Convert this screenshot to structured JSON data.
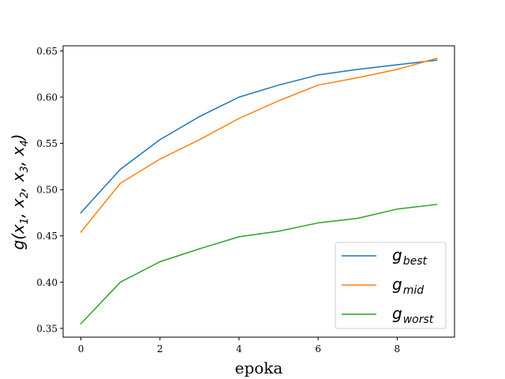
{
  "chart_data": {
    "type": "line",
    "xlabel": "epoka",
    "ylabel": "g(x1, x2, x3, x4)",
    "x": [
      0,
      1,
      2,
      3,
      4,
      5,
      6,
      7,
      8,
      9
    ],
    "xlim": [
      -0.45,
      9.45
    ],
    "ylim": [
      0.3405,
      0.6555
    ],
    "xticks": [
      0,
      2,
      4,
      6,
      8
    ],
    "yticks": [
      0.35,
      0.4,
      0.45,
      0.5,
      0.55,
      0.6,
      0.65
    ],
    "grid": false,
    "legend_position": "lower-right",
    "series": [
      {
        "name": "g_best",
        "legend_main": "g",
        "legend_sub": "best",
        "color": "#1f77b4",
        "values": [
          0.475,
          0.522,
          0.554,
          0.579,
          0.6,
          0.613,
          0.624,
          0.63,
          0.635,
          0.64
        ]
      },
      {
        "name": "g_mid",
        "legend_main": "g",
        "legend_sub": "mid",
        "color": "#ff7f0e",
        "values": [
          0.454,
          0.507,
          0.533,
          0.554,
          0.577,
          0.596,
          0.613,
          0.621,
          0.63,
          0.642
        ]
      },
      {
        "name": "g_worst",
        "legend_main": "g",
        "legend_sub": "worst",
        "color": "#2ca02c",
        "values": [
          0.355,
          0.4,
          0.422,
          0.436,
          0.449,
          0.455,
          0.464,
          0.469,
          0.479,
          0.484
        ]
      }
    ]
  }
}
